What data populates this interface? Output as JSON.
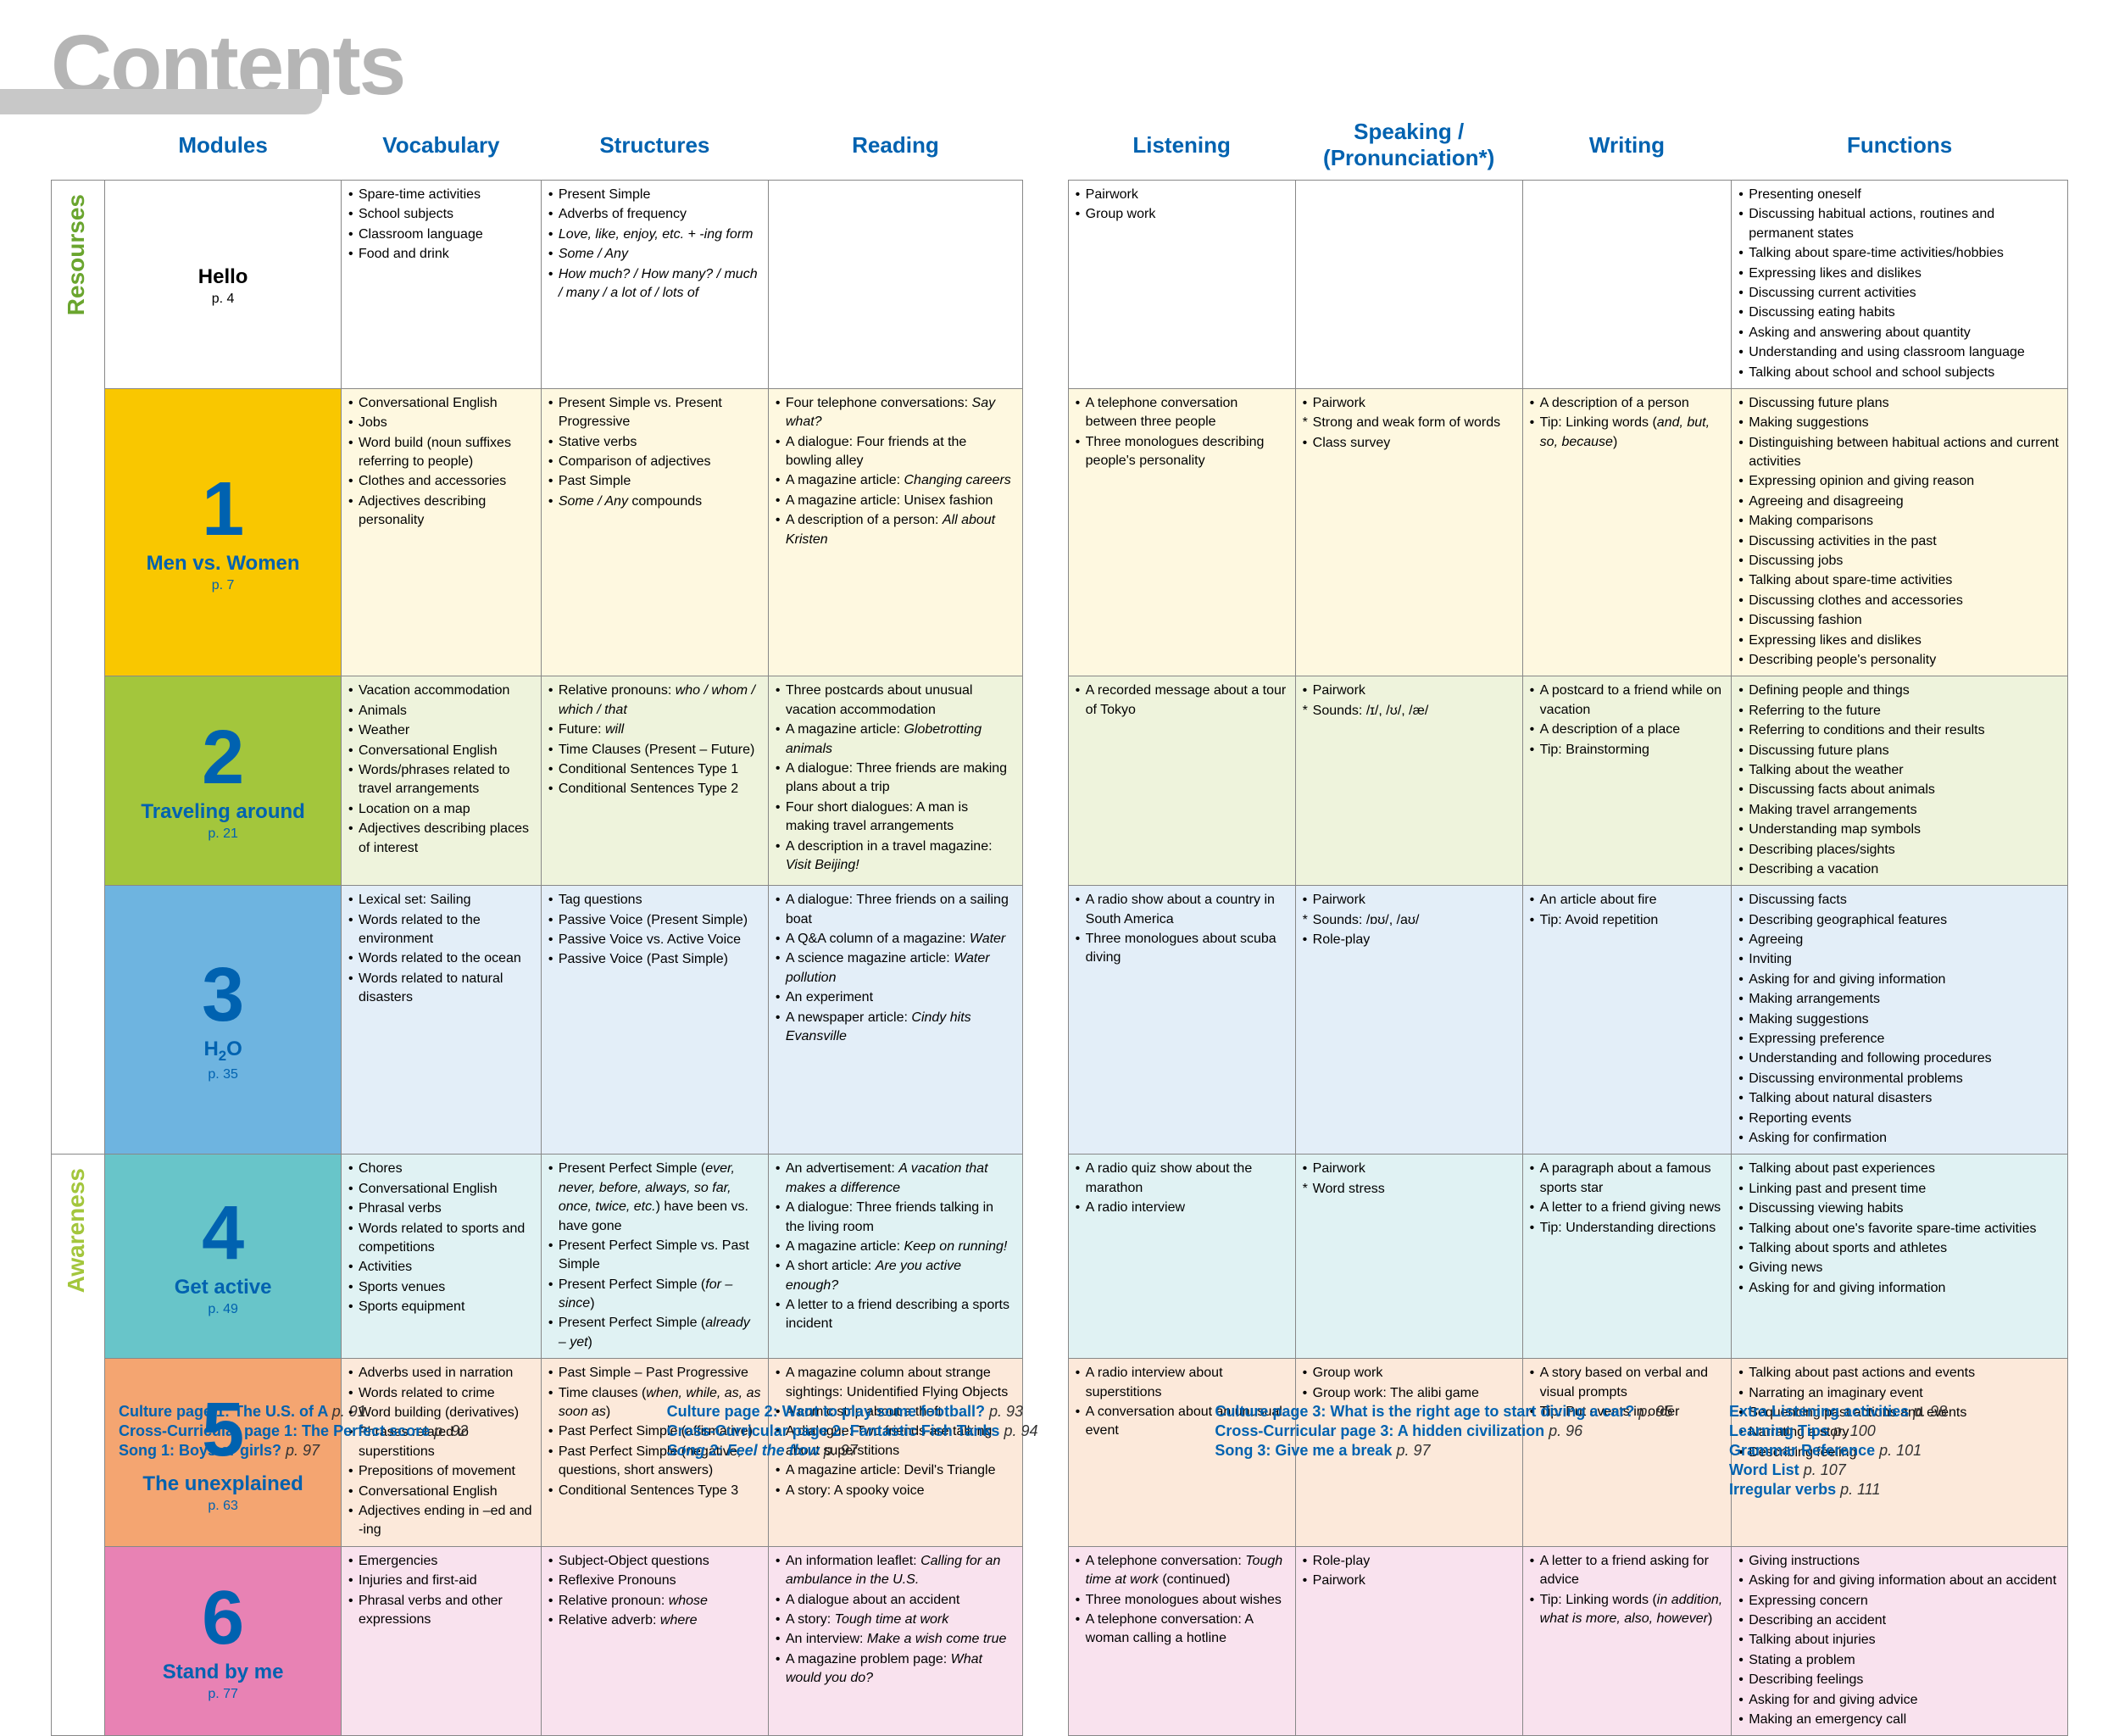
{
  "title": "Contents",
  "headers": [
    "Modules",
    "Vocabulary",
    "Structures",
    "Reading",
    "Listening",
    "Speaking / (Pronunciation*)",
    "Writing",
    "Functions"
  ],
  "sections": {
    "resources": "Resourses",
    "awareness": "Awareness"
  },
  "rows": [
    {
      "id": "hello",
      "module": {
        "num": "",
        "name": "Hello",
        "page": "p. 4",
        "bg": "bg-hello",
        "color": "#0062b0"
      },
      "rowbg": "bg-hello",
      "vocab": [
        "Spare-time activities",
        "School subjects",
        "Classroom language",
        "Food and drink"
      ],
      "struct": [
        "Present Simple",
        "Adverbs of frequency",
        "<span class='italic'>Love, like, enjoy, etc. + -ing form</span>",
        "<span class='italic'>Some / Any</span>",
        "<span class='italic'>How much? / How many? / much / many / a lot of / lots of</span>"
      ],
      "reading": [],
      "listening": [
        "Pairwork",
        "Group work"
      ],
      "speaking": [],
      "writing": [],
      "functions": [
        "Presenting oneself",
        "Discussing habitual actions, routines and permanent states",
        "Talking about spare-time activities/hobbies",
        "Expressing likes and dislikes",
        "Discussing current activities",
        "Discussing eating habits",
        "Asking and answering about quantity",
        "Understanding and using classroom language",
        "Talking about school and school subjects"
      ]
    },
    {
      "id": "r1",
      "module": {
        "num": "1",
        "name": "Men vs. Women",
        "page": "p. 7",
        "bg": "bg-r1-mod"
      },
      "rowbg": "bg-r1",
      "vocab": [
        "Conversational English",
        "Jobs",
        "Word build (noun suffixes referring to people)",
        "Clothes and accessories",
        "Adjectives describing personality"
      ],
      "struct": [
        "Present Simple vs. Present Progressive",
        "Stative verbs",
        "Comparison of adjectives",
        "Past Simple",
        "<span class='italic'>Some / Any</span> compounds"
      ],
      "reading": [
        "Four telephone conversations: <span class='italic'>Say what?</span>",
        "A dialogue: Four friends at the bowling alley",
        "A magazine article: <span class='italic'>Changing careers</span>",
        "A magazine article: Unisex fashion",
        "A description of a person: <span class='italic'>All about Kristen</span>"
      ],
      "listening": [
        "A telephone conversation between three people",
        "Three monologues describing people's personality"
      ],
      "speaking": [
        "Pairwork",
        "*Strong and weak form of words",
        "Class survey"
      ],
      "writing": [
        "A description of a person",
        "Tip: Linking words (<span class='italic'>and, but, so, because</span>)"
      ],
      "functions": [
        "Discussing future plans",
        "Making suggestions",
        "Distinguishing between habitual actions and current activities",
        "Expressing opinion and giving reason",
        "Agreeing and disagreeing",
        "Making comparisons",
        "Discussing activities in the past",
        "Discussing jobs",
        "Talking about spare-time activities",
        "Discussing clothes and accessories",
        "Discussing fashion",
        "Expressing likes and dislikes",
        "Describing people's personality"
      ]
    },
    {
      "id": "r2",
      "module": {
        "num": "2",
        "name": "Traveling around",
        "page": "p. 21",
        "bg": "bg-r2-mod"
      },
      "rowbg": "bg-r2",
      "vocab": [
        "Vacation accommodation",
        "Animals",
        "Weather",
        "Conversational English",
        "Words/phrases related to travel arrangements",
        "Location on a map",
        "Adjectives describing places of interest"
      ],
      "struct": [
        "Relative pronouns: <span class='italic'>who / whom / which / that</span>",
        "Future: <span class='italic'>will</span>",
        "Time Clauses (Present – Future)",
        "Conditional Sentences Type 1",
        "Conditional Sentences Type 2"
      ],
      "reading": [
        "Three postcards about unusual vacation accommodation",
        "A magazine article: <span class='italic'>Globetrotting animals</span>",
        "A dialogue: Three friends are making plans about a trip",
        "Four short dialogues: A man is making travel arrangements",
        "A description in a travel magazine: <span class='italic'>Visit Beijing!</span>"
      ],
      "listening": [
        "A recorded message about a tour of Tokyo"
      ],
      "speaking": [
        "Pairwork",
        "*Sounds: /ɪ/, /ʊ/, /æ/"
      ],
      "writing": [
        "A postcard to a friend while on vacation",
        "A description of a place",
        "Tip: Brainstorming"
      ],
      "functions": [
        "Defining people and things",
        "Referring to the future",
        "Referring to conditions and their results",
        "Discussing future plans",
        "Talking about the weather",
        "Discussing facts about animals",
        "Making travel arrangements",
        "Understanding map symbols",
        "Describing places/sights",
        "Describing a vacation"
      ]
    },
    {
      "id": "r3",
      "module": {
        "num": "3",
        "name": "H₂O",
        "page": "p. 35",
        "bg": "bg-r3-mod"
      },
      "rowbg": "bg-r3",
      "vocab": [
        "Lexical set: Sailing",
        "Words related to the environment",
        "Words related to the ocean",
        "Words related to natural disasters"
      ],
      "struct": [
        "Tag questions",
        "Passive Voice (Present Simple)",
        "Passive Voice vs. Active Voice",
        "Passive Voice (Past Simple)"
      ],
      "reading": [
        "A dialogue: Three friends on a sailing boat",
        "A Q&A column of a magazine: <span class='italic'>Water</span>",
        "A science magazine article: <span class='italic'>Water pollution</span>",
        "An experiment",
        "A newspaper article: <span class='italic'>Cindy hits Evansville</span>"
      ],
      "listening": [
        "A radio show about a country in South America",
        "Three monologues about scuba diving"
      ],
      "speaking": [
        "Pairwork",
        "*Sounds: /ɒʊ/, /aʊ/",
        "Role-play"
      ],
      "writing": [
        "An article about fire",
        "Tip: Avoid repetition"
      ],
      "functions": [
        "Discussing facts",
        "Describing geographical features",
        "Agreeing",
        "Inviting",
        "Asking for and giving information",
        "Making arrangements",
        "Making suggestions",
        "Expressing preference",
        "Understanding and following procedures",
        "Discussing environmental problems",
        "Talking about natural disasters",
        "Reporting events",
        "Asking for confirmation"
      ]
    },
    {
      "id": "a4",
      "module": {
        "num": "4",
        "name": "Get active",
        "page": "p. 49",
        "bg": "bg-a4-mod"
      },
      "rowbg": "bg-a4",
      "vocab": [
        "Chores",
        "Conversational English",
        "Phrasal verbs",
        "Words related to sports and competitions",
        "Activities",
        "Sports venues",
        "Sports equipment"
      ],
      "struct": [
        "Present Perfect Simple (<span class='italic'>ever, never, before, always, so far, once, twice, etc.</span>) have been vs. have gone",
        "Present Perfect Simple vs. Past Simple",
        "Present Perfect Simple (<span class='italic'>for – since</span>)",
        "Present Perfect Simple (<span class='italic'>already – yet</span>)"
      ],
      "reading": [
        "An advertisement: <span class='italic'>A vacation that makes a difference</span>",
        "A dialogue: Three friends talking in the living room",
        "A magazine article: <span class='italic'>Keep on running!</span>",
        "A short article: <span class='italic'>Are you active enough?</span>",
        "A letter to a friend describing a sports incident"
      ],
      "listening": [
        "A radio quiz show about the marathon",
        "A radio interview"
      ],
      "speaking": [
        "Pairwork",
        "*Word stress"
      ],
      "writing": [
        "A paragraph about a famous sports star",
        "A letter to a friend giving news",
        "Tip: Understanding directions"
      ],
      "functions": [
        "Talking about past experiences",
        "Linking past and present time",
        "Discussing viewing habits",
        "Talking about one's favorite spare-time activities",
        "Talking about sports and athletes",
        "Giving news",
        "Asking for and giving information"
      ]
    },
    {
      "id": "a5",
      "module": {
        "num": "5",
        "name": "The unexplained",
        "page": "p. 63",
        "bg": "bg-a5-mod"
      },
      "rowbg": "bg-a5",
      "vocab": [
        "Adverbs used in narration",
        "Words related to crime",
        "Word building (derivatives)",
        "Phrases related to superstitions",
        "Prepositions of movement",
        "Conversational English",
        "Adjectives ending in –ed and -ing"
      ],
      "struct": [
        "Past Simple – Past Progressive",
        "Time clauses (<span class='italic'>when, while, as, as soon as</span>)",
        "Past Perfect Simple (affirmative)",
        "Past Perfect Simple (negative, questions, short answers)",
        "Conditional Sentences Type 3"
      ],
      "reading": [
        "A magazine column about strange sightings: Unidentified Flying Objects",
        "A comic strip about a theft",
        "A dialogue: Two friends are talking about superstitions",
        "A magazine article: Devil's Triangle",
        "A story: A spooky voice"
      ],
      "listening": [
        "A radio interview about superstitions",
        "A conversation about an unusual event"
      ],
      "speaking": [
        "Group work",
        "Group work: The alibi game"
      ],
      "writing": [
        "A story based on verbal and visual prompts",
        "Tip: Put events in order"
      ],
      "functions": [
        "Talking about past actions and events",
        "Narrating an imaginary event",
        "Sequencing past actions and events",
        "Narrating a story",
        "Describing feeling"
      ]
    },
    {
      "id": "a6",
      "module": {
        "num": "6",
        "name": "Stand by me",
        "page": "p. 77",
        "bg": "bg-a6-mod"
      },
      "rowbg": "bg-a6",
      "vocab": [
        "Emergencies",
        "Injuries and first-aid",
        "Phrasal verbs and other expressions"
      ],
      "struct": [
        "Subject-Object questions",
        "Reflexive Pronouns",
        "Relative pronoun: <span class='italic'>whose</span>",
        "Relative adverb: <span class='italic'>where</span>"
      ],
      "reading": [
        "An information leaflet: <span class='italic'>Calling for an ambulance in the U.S.</span>",
        "A dialogue about an accident",
        "A story: <span class='italic'>Tough time at work</span>",
        "An interview: <span class='italic'>Make a wish come true</span>",
        "A magazine problem page: <span class='italic'>What would you do?</span>"
      ],
      "listening": [
        "A telephone conversation: <span class='italic'>Tough time at work</span> (continued)",
        "Three monologues about wishes",
        "A telephone conversation: A woman calling a hotline"
      ],
      "speaking": [
        "Role-play",
        "Pairwork"
      ],
      "writing": [
        "A letter to a friend asking for advice",
        "Tip: Linking words (<span class='italic'>in addition, what is more, also, however</span>)"
      ],
      "functions": [
        "Giving instructions",
        "Asking for and giving information about an accident",
        "Expressing concern",
        "Describing an accident",
        "Talking about injuries",
        "Stating a problem",
        "Describing feelings",
        "Asking for and giving advice",
        "Making an emergency call"
      ]
    }
  ],
  "footer": {
    "col1": [
      {
        "t": "Culture page 1: The U.S. of A",
        "p": "p. 91"
      },
      {
        "t": "Cross-Curricular page 1: The Perfect score",
        "p": "p. 92"
      },
      {
        "t": "Song 1: Boys or girls?",
        "p": "p. 97"
      }
    ],
    "col2": [
      {
        "t": "Culture page 2: Want to play some football?",
        "p": "p. 93"
      },
      {
        "t": "Cross-Curricular page 2: Fantastic Fish Tanks",
        "p": "p. 94"
      },
      {
        "t": "Song 2: Feel the flow",
        "p": "p. 97",
        "italic": true
      }
    ],
    "col3": [
      {
        "t": "Culture page 3: What is the right age to start diving a car?",
        "p": "p. 95"
      },
      {
        "t": "Cross-Curricular page 3: A hidden civilization",
        "p": "p. 96"
      },
      {
        "t": "Song 3: Give me a break",
        "p": "p. 97"
      }
    ],
    "col4": [
      {
        "t": "Extra Listening activities",
        "p": "p. 98"
      },
      {
        "t": "Learning Tips",
        "p": "p. 100"
      },
      {
        "t": "Grammar Reference",
        "p": "p. 101"
      },
      {
        "t": "Word List",
        "p": "p. 107"
      },
      {
        "t": "Irregular verbs",
        "p": "p. 111"
      }
    ]
  },
  "colwidths": {
    "section": 50,
    "module": 260,
    "vocab": 220,
    "struct": 250,
    "reading": 280,
    "gap": 50,
    "listening": 250,
    "speaking": 250,
    "writing": 230,
    "functions": 370
  }
}
